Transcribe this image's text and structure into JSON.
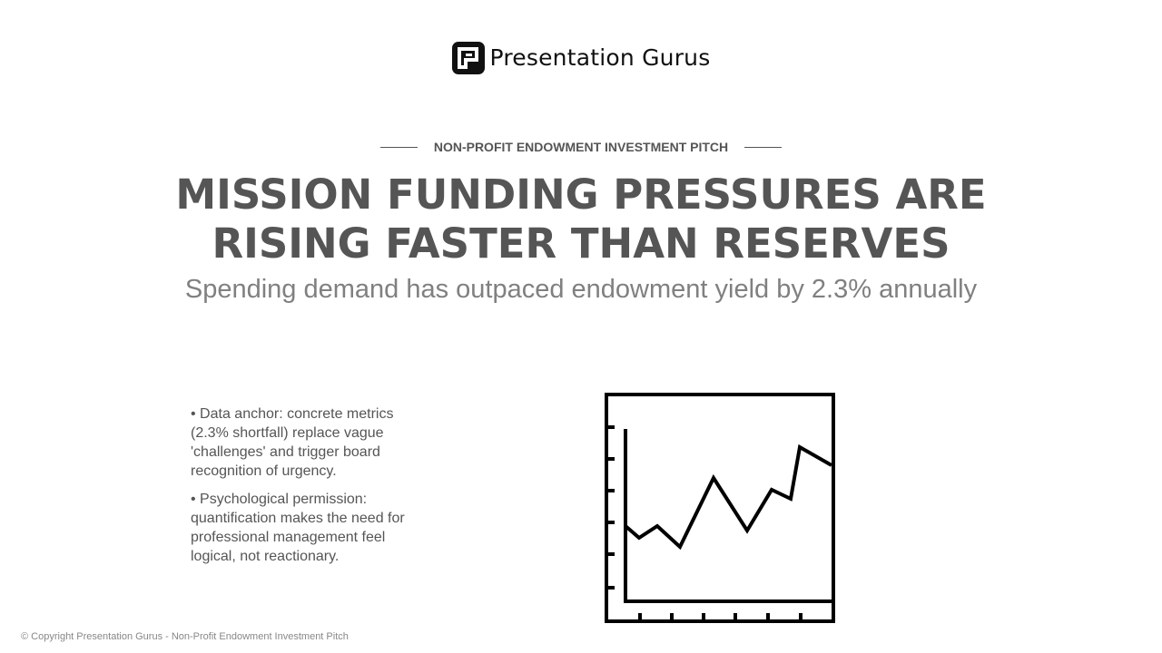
{
  "logo": {
    "name": "Presentation Gurus",
    "icon": "presentation-gurus-logo-mark"
  },
  "eyebrow": "NON-PROFIT ENDOWMENT INVESTMENT PITCH",
  "title": "MISSION FUNDING PRESSURES ARE RISING FASTER THAN RESERVES",
  "subtitle": "Spending demand has outpaced endowment yield by 2.3% annually",
  "bullets": [
    "• Data anchor: concrete metrics (2.3% shortfall) replace vague 'challenges' and trigger board recognition of urgency.",
    "• Psychological permission: quantification makes the need for professional management feel logical, not reactionary."
  ],
  "illustration": {
    "icon": "line-chart-icon"
  },
  "footer": "© Copyright Presentation Gurus - Non-Profit Endowment Investment Pitch",
  "colors": {
    "heading": "#555555",
    "subtitle": "#808080",
    "footer": "#888888",
    "logo": "#111111",
    "icon_stroke": "#000000"
  }
}
